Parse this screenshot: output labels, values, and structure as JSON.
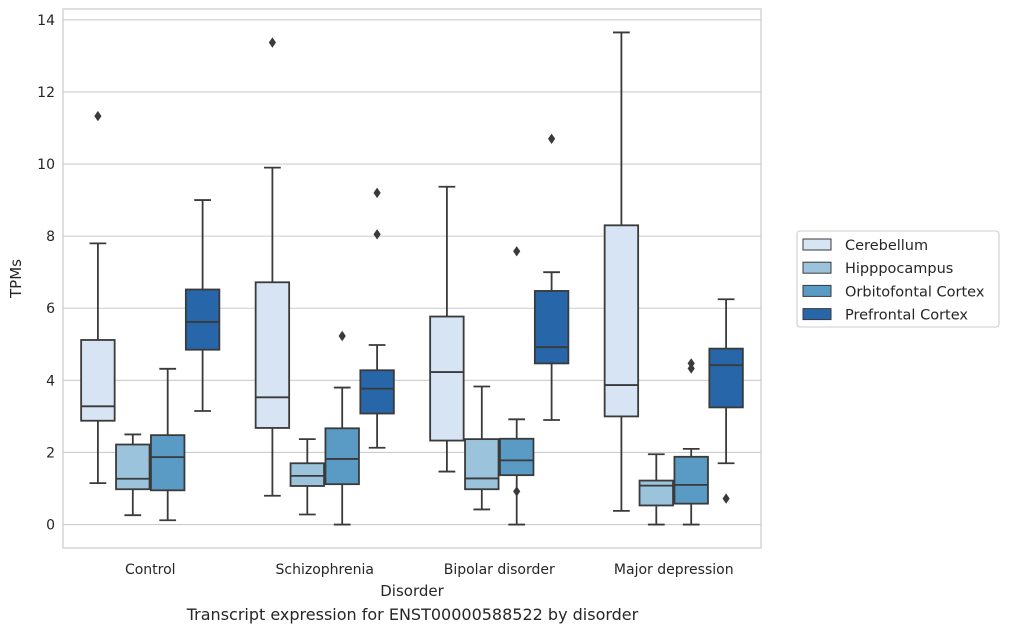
{
  "chart_data": {
    "type": "boxplot",
    "categories": [
      "Control",
      "Schizophrenia",
      "Bipolar disorder",
      "Major depression"
    ],
    "xlabel": "Disorder",
    "ylabel": "TPMs",
    "ylim": [
      -0.65,
      14.3
    ],
    "yticks": [
      0,
      2,
      4,
      6,
      8,
      10,
      12,
      14
    ],
    "grid": "horizontal",
    "legend_position": "right",
    "series": [
      {
        "name": "Cerebellum",
        "color": "#d6e4f3",
        "boxes": [
          {
            "whislo": 1.15,
            "q1": 2.88,
            "med": 3.28,
            "q3": 5.12,
            "whishi": 7.8,
            "fliers": [
              11.33
            ]
          },
          {
            "whislo": 0.8,
            "q1": 2.68,
            "med": 3.53,
            "q3": 6.72,
            "whishi": 9.9,
            "fliers": [
              13.37
            ]
          },
          {
            "whislo": 1.47,
            "q1": 2.33,
            "med": 4.23,
            "q3": 5.77,
            "whishi": 9.37,
            "fliers": []
          },
          {
            "whislo": 0.38,
            "q1": 3.0,
            "med": 3.87,
            "q3": 8.3,
            "whishi": 13.65,
            "fliers": []
          }
        ]
      },
      {
        "name": "Hipppocampus",
        "color": "#9bc4dc",
        "boxes": [
          {
            "whislo": 0.26,
            "q1": 0.98,
            "med": 1.27,
            "q3": 2.22,
            "whishi": 2.5,
            "fliers": []
          },
          {
            "whislo": 0.28,
            "q1": 1.07,
            "med": 1.35,
            "q3": 1.7,
            "whishi": 2.37,
            "fliers": []
          },
          {
            "whislo": 0.42,
            "q1": 0.98,
            "med": 1.28,
            "q3": 2.37,
            "whishi": 3.83,
            "fliers": []
          },
          {
            "whislo": 0.0,
            "q1": 0.53,
            "med": 1.08,
            "q3": 1.22,
            "whishi": 1.95,
            "fliers": []
          }
        ]
      },
      {
        "name": "Orbitofontal Cortex",
        "color": "#5a9bc6",
        "boxes": [
          {
            "whislo": 0.12,
            "q1": 0.95,
            "med": 1.87,
            "q3": 2.48,
            "whishi": 4.32,
            "fliers": []
          },
          {
            "whislo": 0.0,
            "q1": 1.12,
            "med": 1.82,
            "q3": 2.67,
            "whishi": 3.8,
            "fliers": [
              5.23
            ]
          },
          {
            "whislo": 0.0,
            "q1": 1.37,
            "med": 1.78,
            "q3": 2.38,
            "whishi": 2.92,
            "fliers": [
              7.58,
              0.92
            ]
          },
          {
            "whislo": 0.0,
            "q1": 0.58,
            "med": 1.1,
            "q3": 1.88,
            "whishi": 2.1,
            "fliers": [
              4.47,
              4.33
            ]
          }
        ]
      },
      {
        "name": "Prefrontal Cortex",
        "color": "#2767a9",
        "boxes": [
          {
            "whislo": 3.15,
            "q1": 4.85,
            "med": 5.62,
            "q3": 6.52,
            "whishi": 9.0,
            "fliers": []
          },
          {
            "whislo": 2.13,
            "q1": 3.08,
            "med": 3.77,
            "q3": 4.28,
            "whishi": 4.98,
            "fliers": [
              9.2,
              8.05
            ]
          },
          {
            "whislo": 2.9,
            "q1": 4.47,
            "med": 4.92,
            "q3": 6.48,
            "whishi": 7.0,
            "fliers": [
              10.7
            ]
          },
          {
            "whislo": 1.7,
            "q1": 3.25,
            "med": 4.42,
            "q3": 4.88,
            "whishi": 6.25,
            "fliers": [
              0.72
            ]
          }
        ]
      }
    ]
  },
  "caption": "Transcript expression for ENST00000588522 by disorder",
  "colors": {
    "box_edge": "#3a3a3a",
    "grid": "#cccccc",
    "frame": "#cccccc"
  }
}
